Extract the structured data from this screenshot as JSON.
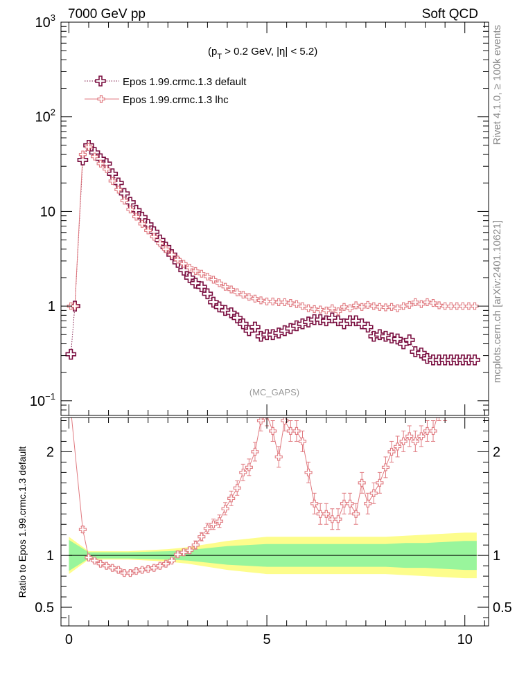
{
  "chart_data": {
    "type": "scatter",
    "header": {
      "left": "7000 GeV pp",
      "right": "Soft QCD"
    },
    "cut_label": {
      "prefix": "(p",
      "sub": "T",
      "suffix": " > 0.2 GeV, |η| < 5.2)"
    },
    "watermark": "(MC_GAPS)",
    "side_labels": {
      "top": "Rivet 4.1.0, ≥ 100k events",
      "bottom": "mcplots.cern.ch [arXiv:2401.10621]"
    },
    "ratio_ylabel": "Ratio to Epos 1.99.crmc.1.3 default",
    "colors": {
      "default": "#7a0f40",
      "lhc": "#e07a80",
      "band_inner": "#99f59c",
      "band_outer": "#fdfd8c"
    },
    "top_axis": {
      "scale": "log",
      "ylim": [
        0.07,
        1000
      ],
      "major_ticks": [
        {
          "v": 1000,
          "base": "10",
          "exp": "3"
        },
        {
          "v": 100,
          "base": "10",
          "exp": "2"
        },
        {
          "v": 10,
          "base": "10",
          "exp": ""
        },
        {
          "v": 1,
          "base": "1",
          "exp": ""
        },
        {
          "v": 0.1,
          "base": "10",
          "exp": "−1"
        }
      ]
    },
    "ratio_axis": {
      "ylim": [
        0.32,
        2.33
      ],
      "ticks": [
        {
          "v": 0.5,
          "label": "0.5"
        },
        {
          "v": 1,
          "label": "1"
        },
        {
          "v": 2,
          "label": "2"
        }
      ]
    },
    "x_axis": {
      "xlim": [
        -0.2,
        10.6
      ],
      "ticks": [
        {
          "v": 0,
          "label": "0"
        },
        {
          "v": 5,
          "label": "5"
        },
        {
          "v": 10,
          "label": "10"
        }
      ]
    },
    "x": [
      0.05,
      0.15,
      0.35,
      0.5,
      0.65,
      0.8,
      0.95,
      1.1,
      1.25,
      1.4,
      1.55,
      1.7,
      1.85,
      2.0,
      2.15,
      2.3,
      2.45,
      2.6,
      2.75,
      2.9,
      3.05,
      3.2,
      3.35,
      3.5,
      3.65,
      3.8,
      3.95,
      4.1,
      4.25,
      4.4,
      4.55,
      4.7,
      4.85,
      5.0,
      5.15,
      5.3,
      5.45,
      5.6,
      5.75,
      5.9,
      6.05,
      6.2,
      6.35,
      6.5,
      6.65,
      6.8,
      6.95,
      7.1,
      7.25,
      7.4,
      7.55,
      7.7,
      7.85,
      8.0,
      8.15,
      8.3,
      8.45,
      8.6,
      8.75,
      8.9,
      9.05,
      9.2,
      9.35,
      9.5,
      9.65,
      9.8,
      9.95,
      10.1,
      10.25
    ],
    "series": [
      {
        "name": "Epos 1.99.crmc.1.3 default",
        "key": "default",
        "values": [
          0.31,
          1.0,
          35,
          50,
          42,
          36,
          32,
          25,
          20,
          15.5,
          12.5,
          10.3,
          8.7,
          7.3,
          6.1,
          5.0,
          4.2,
          3.5,
          2.9,
          2.4,
          2.0,
          1.75,
          1.6,
          1.35,
          1.1,
          0.98,
          0.9,
          0.85,
          0.75,
          0.65,
          0.55,
          0.6,
          0.48,
          0.5,
          0.5,
          0.52,
          0.55,
          0.58,
          0.62,
          0.65,
          0.68,
          0.72,
          0.72,
          0.7,
          0.75,
          0.7,
          0.65,
          0.7,
          0.7,
          0.65,
          0.6,
          0.48,
          0.5,
          0.48,
          0.46,
          0.45,
          0.4,
          0.44,
          0.33,
          0.32,
          0.28,
          0.27,
          0.27,
          0.27,
          0.27,
          0.27,
          0.27,
          0.27,
          0.27
        ]
      },
      {
        "name": "Epos 1.99.crmc.1.3 lhc",
        "key": "lhc",
        "values": [
          1.0,
          1.0,
          40,
          48,
          38,
          32,
          28,
          21,
          17,
          13,
          10.5,
          8.8,
          7.4,
          6.3,
          5.4,
          4.6,
          4.0,
          3.5,
          3.1,
          2.8,
          2.55,
          2.35,
          2.2,
          2.05,
          1.9,
          1.75,
          1.6,
          1.5,
          1.4,
          1.32,
          1.25,
          1.2,
          1.15,
          1.12,
          1.12,
          1.1,
          1.1,
          1.08,
          1.05,
          1.0,
          0.95,
          0.93,
          0.92,
          0.9,
          0.95,
          0.88,
          0.98,
          0.95,
          1.02,
          0.98,
          1.03,
          1.0,
          0.98,
          0.97,
          0.98,
          0.95,
          1.0,
          1.03,
          1.1,
          1.05,
          1.1,
          1.08,
          1.02,
          1.0,
          1.0,
          1.0,
          1.0,
          1.0,
          1.0
        ]
      }
    ],
    "ratio": {
      "x": [
        0.05,
        0.35,
        0.5,
        0.65,
        0.8,
        0.95,
        1.1,
        1.25,
        1.4,
        1.55,
        1.7,
        1.85,
        2.0,
        2.15,
        2.3,
        2.45,
        2.6,
        2.75,
        2.9,
        3.05,
        3.2,
        3.35,
        3.5,
        3.65,
        3.8,
        3.95,
        4.1,
        4.25,
        4.4,
        4.55,
        4.7,
        4.85,
        5.0,
        5.15,
        5.3,
        5.45,
        5.6,
        5.75,
        5.9,
        6.05,
        6.2,
        6.35,
        6.5,
        6.65,
        6.8,
        6.95,
        7.1,
        7.25,
        7.4,
        7.55,
        7.7,
        7.85,
        8.0,
        8.15,
        8.3,
        8.45,
        8.6,
        8.75,
        8.9,
        9.05,
        9.2,
        9.35,
        9.5
      ],
      "values": [
        2.4,
        1.25,
        0.98,
        0.95,
        0.92,
        0.9,
        0.88,
        0.86,
        0.83,
        0.83,
        0.85,
        0.86,
        0.87,
        0.88,
        0.9,
        0.92,
        0.95,
        1.01,
        1.03,
        1.05,
        1.1,
        1.18,
        1.26,
        1.3,
        1.33,
        1.45,
        1.55,
        1.65,
        1.8,
        1.85,
        2.0,
        2.3,
        2.35,
        2.2,
        1.95,
        2.3,
        2.2,
        2.2,
        2.1,
        1.8,
        1.5,
        1.4,
        1.4,
        1.35,
        1.35,
        1.5,
        1.5,
        1.4,
        1.7,
        1.5,
        1.6,
        1.7,
        1.85,
        2.0,
        2.05,
        2.1,
        2.15,
        2.1,
        2.15,
        2.2,
        2.2,
        2.4,
        2.4
      ],
      "errors": [
        0.05,
        0.03,
        0.02,
        0.02,
        0.02,
        0.02,
        0.02,
        0.02,
        0.02,
        0.02,
        0.02,
        0.02,
        0.02,
        0.02,
        0.02,
        0.02,
        0.02,
        0.03,
        0.03,
        0.03,
        0.04,
        0.04,
        0.05,
        0.05,
        0.06,
        0.06,
        0.07,
        0.07,
        0.08,
        0.08,
        0.09,
        0.1,
        0.1,
        0.1,
        0.1,
        0.1,
        0.1,
        0.1,
        0.1,
        0.1,
        0.1,
        0.1,
        0.1,
        0.1,
        0.1,
        0.1,
        0.1,
        0.1,
        0.1,
        0.1,
        0.1,
        0.1,
        0.1,
        0.1,
        0.1,
        0.1,
        0.1,
        0.1,
        0.1,
        0.1,
        0.1,
        0.1,
        0.1
      ]
    },
    "band": {
      "x": [
        0.0,
        0.5,
        1.0,
        1.5,
        2.0,
        2.5,
        3.0,
        3.5,
        4.0,
        4.5,
        5.0,
        5.5,
        6.0,
        6.5,
        7.0,
        7.5,
        8.0,
        8.5,
        9.0,
        9.5,
        10.0,
        10.3
      ],
      "inner": [
        0.15,
        0.03,
        0.03,
        0.03,
        0.035,
        0.04,
        0.05,
        0.07,
        0.09,
        0.1,
        0.11,
        0.11,
        0.11,
        0.11,
        0.11,
        0.11,
        0.11,
        0.12,
        0.12,
        0.13,
        0.14,
        0.14
      ],
      "outer": [
        0.18,
        0.04,
        0.04,
        0.04,
        0.05,
        0.06,
        0.08,
        0.11,
        0.14,
        0.16,
        0.18,
        0.18,
        0.18,
        0.18,
        0.18,
        0.18,
        0.18,
        0.19,
        0.2,
        0.21,
        0.22,
        0.22
      ]
    }
  }
}
